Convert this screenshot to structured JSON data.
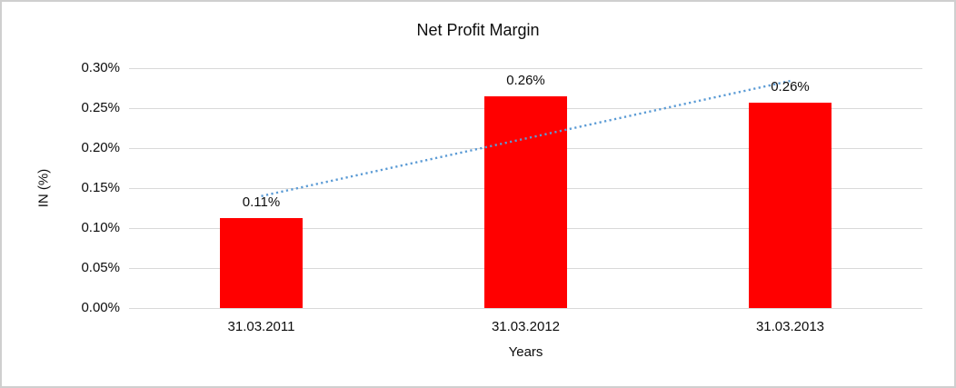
{
  "chart_data": {
    "type": "bar",
    "title": "Net Profit Margin",
    "categories": [
      "31.03.2011",
      "31.03.2012",
      "31.03.2013"
    ],
    "values": [
      0.113,
      0.265,
      0.257
    ],
    "data_labels": [
      "0.11%",
      "0.26%",
      "0.26%"
    ],
    "xlabel": "Years",
    "ylabel": "IN (%)",
    "ylim": [
      0,
      0.3
    ],
    "yticks": [
      {
        "value": 0.0,
        "label": "0.00%"
      },
      {
        "value": 0.05,
        "label": "0.05%"
      },
      {
        "value": 0.1,
        "label": "0.10%"
      },
      {
        "value": 0.15,
        "label": "0.15%"
      },
      {
        "value": 0.2,
        "label": "0.20%"
      },
      {
        "value": 0.25,
        "label": "0.25%"
      },
      {
        "value": 0.3,
        "label": "0.30%"
      }
    ],
    "grid": "horizontal",
    "legend": "none",
    "bar_color": "#ff0000",
    "trendline": {
      "type": "linear",
      "style": "dotted",
      "color": "#5b9bd5",
      "start_value": 0.14,
      "end_value": 0.284
    }
  },
  "colors": {
    "background": "#ffffff",
    "gridline": "#d9d9d9",
    "frame_border": "#cfcfcf",
    "text": "#0d0d0d"
  }
}
